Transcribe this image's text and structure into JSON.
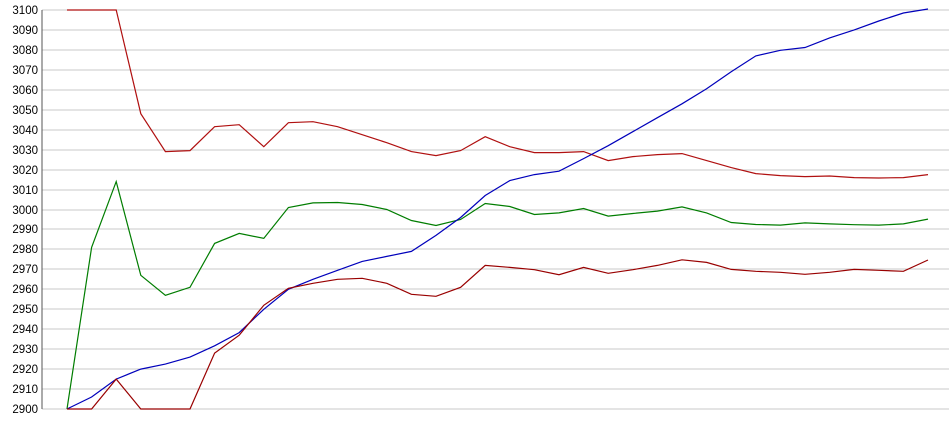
{
  "chart": {
    "title": "",
    "has_legend": false,
    "background": "#ffffff",
    "gridline_color": "#c9c9c9",
    "axis_line_color": "#555555",
    "tick_label_color": "#000000"
  },
  "chart_data": {
    "type": "line",
    "title": "",
    "xlabel": "",
    "ylabel": "",
    "x_axis_labels_visible": false,
    "grid": "horizontal",
    "legend_position": "none",
    "ylim": [
      2900,
      3100
    ],
    "y_tick_step": 10,
    "y_ticks": [
      3100,
      3090,
      3080,
      3070,
      3060,
      3050,
      3040,
      3030,
      3020,
      3010,
      3000,
      2990,
      2980,
      2970,
      2960,
      2950,
      2940,
      2930,
      2920,
      2910,
      2900
    ],
    "n_points": 36,
    "series": [
      {
        "name": "upper-red",
        "color": "#b01010",
        "values": [
          3100,
          3100,
          3100,
          3048,
          3029,
          3029.5,
          3041.5,
          3042.5,
          3031.5,
          3043.5,
          3044,
          3041.5,
          3037.5,
          3033.5,
          3029,
          3027,
          3029.5,
          3036.5,
          3031.5,
          3028.5,
          3028.5,
          3029,
          3024.5,
          3026.5,
          3027.5,
          3028,
          3024.5,
          3021,
          3018,
          3017,
          3016.5,
          3016.8,
          3016,
          3015.8,
          3016,
          3017.5
        ]
      },
      {
        "name": "green",
        "color": "#007d00",
        "values": [
          2900,
          2981,
          3014,
          2967,
          2957,
          2961,
          2983,
          2988,
          2985.5,
          3001,
          3003.3,
          3003.5,
          3002.5,
          3000,
          2994.5,
          2992,
          2995,
          3003,
          3001.5,
          2997.5,
          2998.3,
          3000.5,
          2996.7,
          2998,
          2999.2,
          3001.3,
          2998.3,
          2993.5,
          2992.5,
          2992.2,
          2993.3,
          2992.8,
          2992.4,
          2992.2,
          2992.8,
          2995.2
        ]
      },
      {
        "name": "blue",
        "color": "#0000bb",
        "values": [
          2900,
          2906,
          2915,
          2920,
          2922.5,
          2926,
          2931.7,
          2938.3,
          2950,
          2960,
          2965,
          2969.5,
          2974,
          2976.5,
          2979,
          2987,
          2996,
          3007,
          3014.5,
          3017.5,
          3019.2,
          3025.5,
          3032,
          3039,
          3046,
          3053,
          3060.5,
          3069,
          3077,
          3079.8,
          3081.2,
          3086,
          3090,
          3094.5,
          3098.5,
          3100.5
        ]
      },
      {
        "name": "lower-dark-red",
        "color": "#990000",
        "values": [
          2900,
          2900,
          2915,
          2900,
          2900,
          2900,
          2928,
          2937,
          2952,
          2960.5,
          2963,
          2965,
          2965.5,
          2963,
          2957.5,
          2956.5,
          2961,
          2972,
          2971,
          2969.8,
          2967.3,
          2971,
          2968,
          2969.8,
          2972,
          2974.8,
          2973.5,
          2970,
          2969,
          2968.5,
          2967.5,
          2968.5,
          2970,
          2969.5,
          2969,
          2974.7
        ]
      }
    ]
  }
}
